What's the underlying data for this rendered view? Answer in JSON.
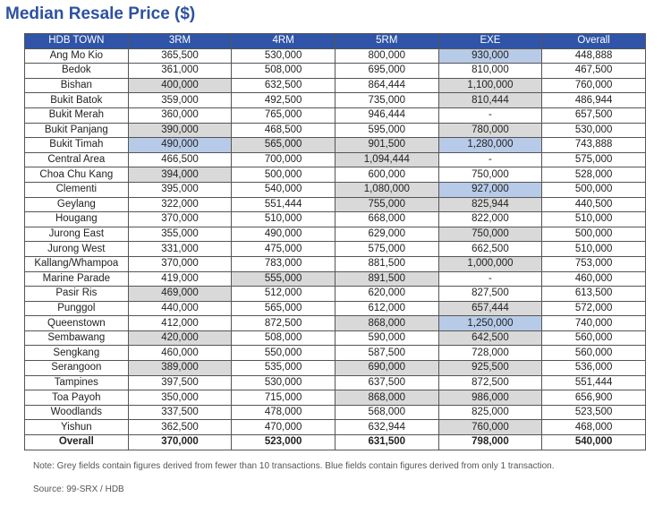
{
  "title": "Median Resale Price ($)",
  "table": {
    "header": [
      "HDB TOWN",
      "3RM",
      "4RM",
      "5RM",
      "EXE",
      "Overall"
    ],
    "rows": [
      [
        "Ang Mo Kio",
        "365,500",
        "530,000",
        "800,000",
        "930,000",
        "448,888"
      ],
      [
        "Bedok",
        "361,000",
        "508,000",
        "695,000",
        "810,000",
        "467,500"
      ],
      [
        "Bishan",
        "400,000",
        "632,500",
        "864,444",
        "1,100,000",
        "760,000"
      ],
      [
        "Bukit Batok",
        "359,000",
        "492,500",
        "735,000",
        "810,444",
        "486,944"
      ],
      [
        "Bukit Merah",
        "360,000",
        "765,000",
        "946,444",
        "-",
        "657,500"
      ],
      [
        "Bukit Panjang",
        "390,000",
        "468,500",
        "595,000",
        "780,000",
        "530,000"
      ],
      [
        "Bukit Timah",
        "490,000",
        "565,000",
        "901,500",
        "1,280,000",
        "743,888"
      ],
      [
        "Central Area",
        "466,500",
        "700,000",
        "1,094,444",
        "-",
        "575,000"
      ],
      [
        "Choa Chu Kang",
        "394,000",
        "500,000",
        "600,000",
        "750,000",
        "528,000"
      ],
      [
        "Clementi",
        "395,000",
        "540,000",
        "1,080,000",
        "927,000",
        "500,000"
      ],
      [
        "Geylang",
        "322,000",
        "551,444",
        "755,000",
        "825,944",
        "440,500"
      ],
      [
        "Hougang",
        "370,000",
        "510,000",
        "668,000",
        "822,000",
        "510,000"
      ],
      [
        "Jurong East",
        "355,000",
        "490,000",
        "629,000",
        "750,000",
        "500,000"
      ],
      [
        "Jurong West",
        "331,000",
        "475,000",
        "575,000",
        "662,500",
        "510,000"
      ],
      [
        "Kallang/Whampoa",
        "370,000",
        "783,000",
        "881,500",
        "1,000,000",
        "753,000"
      ],
      [
        "Marine Parade",
        "419,000",
        "555,000",
        "891,500",
        "-",
        "460,000"
      ],
      [
        "Pasir Ris",
        "469,000",
        "512,000",
        "620,000",
        "827,500",
        "613,500"
      ],
      [
        "Punggol",
        "440,000",
        "565,000",
        "612,000",
        "657,444",
        "572,000"
      ],
      [
        "Queenstown",
        "412,000",
        "872,500",
        "868,000",
        "1,250,000",
        "740,000"
      ],
      [
        "Sembawang",
        "420,000",
        "508,000",
        "590,000",
        "642,500",
        "560,000"
      ],
      [
        "Sengkang",
        "460,000",
        "550,000",
        "587,500",
        "728,000",
        "560,000"
      ],
      [
        "Serangoon",
        "389,000",
        "535,000",
        "690,000",
        "925,500",
        "536,000"
      ],
      [
        "Tampines",
        "397,500",
        "530,000",
        "637,500",
        "872,500",
        "551,444"
      ],
      [
        "Toa Payoh",
        "350,000",
        "715,000",
        "868,000",
        "986,000",
        "656,900"
      ],
      [
        "Woodlands",
        "337,500",
        "478,000",
        "568,000",
        "825,000",
        "523,500"
      ],
      [
        "Yishun",
        "362,500",
        "470,000",
        "632,944",
        "760,000",
        "468,000"
      ]
    ],
    "footer": [
      "Overall",
      "370,000",
      "523,000",
      "631,500",
      "798,000",
      "540,000"
    ],
    "fills": {
      "grey": "#d9d9d9",
      "blue": "#b7cbe8"
    },
    "shade": [
      [
        null,
        null,
        null,
        null,
        "blue",
        null
      ],
      [
        null,
        null,
        null,
        null,
        null,
        null
      ],
      [
        null,
        "grey",
        null,
        null,
        "grey",
        null
      ],
      [
        null,
        null,
        null,
        null,
        "grey",
        null
      ],
      [
        null,
        null,
        null,
        null,
        null,
        null
      ],
      [
        null,
        "grey",
        null,
        null,
        "grey",
        null
      ],
      [
        null,
        "blue",
        "grey",
        "grey",
        "blue",
        null
      ],
      [
        null,
        null,
        null,
        "grey",
        null,
        null
      ],
      [
        null,
        "grey",
        null,
        null,
        null,
        null
      ],
      [
        null,
        null,
        null,
        "grey",
        "blue",
        null
      ],
      [
        null,
        null,
        null,
        "grey",
        "grey",
        null
      ],
      [
        null,
        null,
        null,
        null,
        null,
        null
      ],
      [
        null,
        null,
        null,
        null,
        "grey",
        null
      ],
      [
        null,
        null,
        null,
        null,
        null,
        null
      ],
      [
        null,
        null,
        null,
        null,
        "grey",
        null
      ],
      [
        null,
        null,
        "grey",
        "grey",
        null,
        null
      ],
      [
        null,
        "grey",
        null,
        null,
        null,
        null
      ],
      [
        null,
        null,
        null,
        null,
        "grey",
        null
      ],
      [
        null,
        null,
        null,
        "grey",
        "blue",
        null
      ],
      [
        null,
        "grey",
        null,
        null,
        "grey",
        null
      ],
      [
        null,
        null,
        null,
        null,
        null,
        null
      ],
      [
        null,
        "grey",
        null,
        "grey",
        "grey",
        null
      ],
      [
        null,
        null,
        null,
        null,
        null,
        null
      ],
      [
        null,
        null,
        null,
        "grey",
        "grey",
        null
      ],
      [
        null,
        null,
        null,
        null,
        null,
        null
      ],
      [
        null,
        null,
        null,
        null,
        "grey",
        null
      ]
    ]
  },
  "note": "Note: Grey fields contain figures derived from fewer than 10 transactions. Blue fields contain figures derived from only 1 transaction.",
  "source": "Source: 99-SRX / HDB"
}
